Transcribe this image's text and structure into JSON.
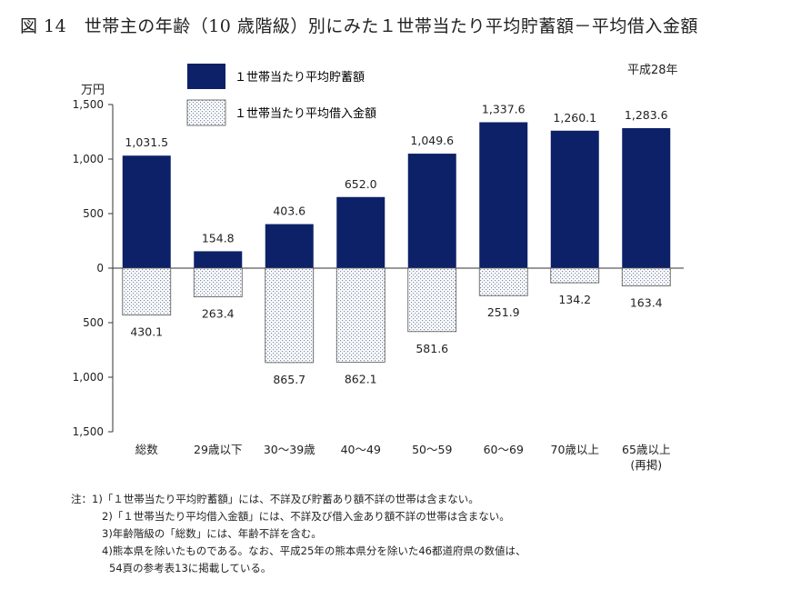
{
  "title": "図 14　世帯主の年齢（10 歳階級）別にみた１世帯当たり平均貯蓄額－平均借入金額",
  "year_label": "平成28年",
  "unit_label": "万円",
  "colors": {
    "savings": "#0d2168",
    "loans_pattern": "#7a8aa8"
  },
  "legend": {
    "savings": "１世帯当たり平均貯蓄額",
    "loans": "１世帯当たり平均借入金額"
  },
  "chart_data": {
    "type": "bar",
    "categories": [
      "総数",
      "29歳以下",
      "30～39歳",
      "40～49",
      "50～59",
      "60～69",
      "70歳以上",
      "65歳以上\n(再掲)"
    ],
    "category_lines": [
      [
        "総数"
      ],
      [
        "29歳以下"
      ],
      [
        "30～39歳"
      ],
      [
        "40～49"
      ],
      [
        "50～59"
      ],
      [
        "60～69"
      ],
      [
        "70歳以上"
      ],
      [
        "65歳以上",
        "(再掲)"
      ]
    ],
    "series": [
      {
        "name": "１世帯当たり平均貯蓄額",
        "values": [
          1031.5,
          154.8,
          403.6,
          652.0,
          1049.6,
          1337.6,
          1260.1,
          1283.6
        ],
        "labels": [
          "1,031.5",
          "154.8",
          "403.6",
          "652.0",
          "1,049.6",
          "1,337.6",
          "1,260.1",
          "1,283.6"
        ]
      },
      {
        "name": "１世帯当たり平均借入金額",
        "values": [
          430.1,
          263.4,
          865.7,
          862.1,
          581.6,
          251.9,
          134.2,
          163.4
        ],
        "labels": [
          "430.1",
          "263.4",
          "865.7",
          "862.1",
          "581.6",
          "251.9",
          "134.2",
          "163.4"
        ]
      }
    ],
    "ylim": [
      -1500,
      1500
    ],
    "yticks": [
      1500,
      1000,
      500,
      0,
      -500,
      -1000,
      -1500
    ],
    "ytick_labels": [
      "1,500",
      "1,000",
      "500",
      "0",
      "500",
      "1,000",
      "1,500"
    ],
    "legend_position": "top-left"
  },
  "notes": [
    "注：1)「１世帯当たり平均貯蓄額」には、不詳及び貯蓄あり額不詳の世帯は含まない。",
    "2)「１世帯当たり平均借入金額」には、不詳及び借入金あり額不詳の世帯は含まない。",
    "3)年齢階級の「総数」には、年齢不詳を含む。",
    "4)熊本県を除いたものである。なお、平成25年の熊本県分を除いた46都道府県の数値は、",
    "54頁の参考表13に掲載している。"
  ]
}
